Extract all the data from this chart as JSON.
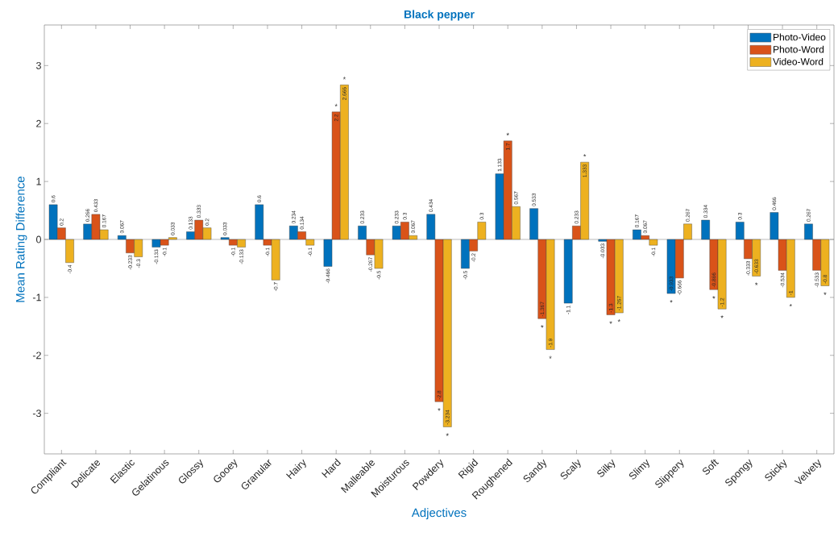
{
  "chart_data": {
    "type": "bar",
    "title": "Black pepper",
    "xlabel": "Adjectives",
    "ylabel": "Mean Rating Difference",
    "categories": [
      "Compliant",
      "Delicate",
      "Elastic",
      "Gelatinous",
      "Glossy",
      "Gooey",
      "Granular",
      "Hairy",
      "Hard",
      "Malleable",
      "Moisturous",
      "Powdery",
      "Rigid",
      "Roughened",
      "Sandy",
      "Scaly",
      "Silky",
      "Slimy",
      "Slippery",
      "Soft",
      "Spongy",
      "Sticky",
      "Velvety"
    ],
    "series": [
      {
        "name": "Photo-Video",
        "color": "#0072bd",
        "values": [
          0.6,
          0.266,
          0.067,
          -0.133,
          0.133,
          0.033,
          0.6,
          0.234,
          -0.466,
          0.233,
          0.233,
          0.434,
          -0.5,
          1.133,
          0.533,
          -1.1,
          -0.033,
          0.167,
          -0.933,
          0.334,
          0.3,
          0.466,
          0.267
        ]
      },
      {
        "name": "Photo-Word",
        "color": "#d95319",
        "values": [
          0.2,
          0.433,
          -0.233,
          -0.1,
          0.333,
          -0.1,
          -0.1,
          0.134,
          2.2,
          -0.267,
          0.3,
          -2.8,
          -0.2,
          1.7,
          -1.367,
          0.233,
          -1.3,
          0.067,
          -0.666,
          -0.866,
          -0.333,
          -0.534,
          -0.533
        ]
      },
      {
        "name": "Video-Word",
        "color": "#edb120",
        "values": [
          -0.4,
          0.167,
          -0.3,
          0.033,
          0.2,
          -0.133,
          -0.7,
          -0.1,
          2.666,
          -0.5,
          0.067,
          -3.234,
          0.3,
          0.567,
          -1.9,
          1.333,
          -1.267,
          -0.1,
          0.267,
          -1.2,
          -0.633,
          -1,
          -0.8
        ]
      }
    ],
    "ylim": [
      -3.7,
      3.7
    ],
    "yticks": [
      -3,
      -2,
      -1,
      0,
      1,
      2,
      3
    ],
    "legend": "top right",
    "data_labels": true,
    "annotations": [
      "*",
      "*",
      "*",
      "*",
      "*",
      "*",
      "*",
      "*",
      "*",
      "*",
      "*",
      "*",
      "*",
      "*",
      "*",
      "*"
    ]
  }
}
